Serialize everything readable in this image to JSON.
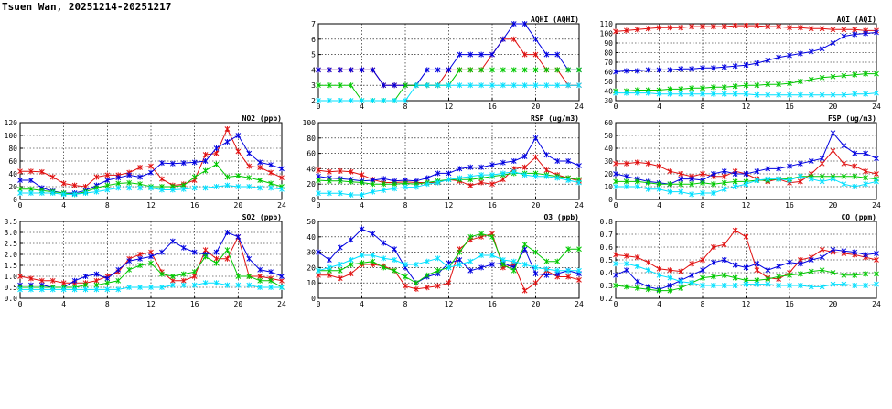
{
  "page": {
    "title": "Tsuen Wan, 20251214-20251217"
  },
  "colors": {
    "red": "#e01010",
    "blue": "#0000e0",
    "green": "#00c800",
    "cyan": "#00e0ff"
  },
  "chart_data": [
    {
      "title": "AQHI (AQHI)",
      "type": "line",
      "xlim": [
        0,
        24
      ],
      "xticks": [
        0,
        4,
        8,
        12,
        16,
        20,
        24
      ],
      "ylim": [
        2,
        7
      ],
      "yticks": [
        2,
        3,
        4,
        5,
        6,
        7
      ],
      "grid": true,
      "series": [
        {
          "color": "red",
          "values": [
            4,
            4,
            4,
            4,
            4,
            4,
            3,
            3,
            3,
            3,
            3,
            3,
            4,
            4,
            4,
            4,
            5,
            6,
            6,
            5,
            5,
            4,
            4,
            3,
            3
          ]
        },
        {
          "color": "blue",
          "values": [
            4,
            4,
            4,
            4,
            4,
            4,
            3,
            3,
            3,
            3,
            4,
            4,
            4,
            5,
            5,
            5,
            5,
            6,
            7,
            7,
            6,
            5,
            5,
            4,
            4
          ]
        },
        {
          "color": "green",
          "values": [
            3,
            3,
            3,
            3,
            2,
            2,
            2,
            2,
            3,
            3,
            3,
            3,
            3,
            4,
            4,
            4,
            4,
            4,
            4,
            4,
            4,
            4,
            4,
            4,
            4
          ]
        },
        {
          "color": "cyan",
          "values": [
            2,
            2,
            2,
            2,
            2,
            2,
            2,
            2,
            2,
            3,
            3,
            3,
            3,
            3,
            3,
            3,
            3,
            3,
            3,
            3,
            3,
            3,
            3,
            3,
            3
          ]
        }
      ]
    },
    {
      "title": "AQI (AQI)",
      "type": "line",
      "xlim": [
        0,
        24
      ],
      "xticks": [
        0,
        4,
        8,
        12,
        16,
        20,
        24
      ],
      "ylim": [
        30,
        110
      ],
      "yticks": [
        30,
        40,
        50,
        60,
        70,
        80,
        90,
        100,
        110
      ],
      "grid": true,
      "series": [
        {
          "color": "red",
          "values": [
            102,
            103,
            104,
            105,
            106,
            106,
            106,
            107,
            107,
            107,
            107,
            108,
            108,
            108,
            107,
            107,
            106,
            106,
            105,
            105,
            104,
            104,
            104,
            103,
            103
          ]
        },
        {
          "color": "blue",
          "values": [
            60,
            61,
            61,
            62,
            62,
            62,
            63,
            63,
            64,
            64,
            65,
            66,
            67,
            69,
            72,
            75,
            77,
            79,
            81,
            84,
            90,
            97,
            99,
            100,
            101
          ]
        },
        {
          "color": "green",
          "values": [
            40,
            40,
            41,
            41,
            41,
            42,
            42,
            43,
            43,
            44,
            44,
            45,
            46,
            46,
            47,
            47,
            48,
            50,
            52,
            54,
            55,
            56,
            57,
            58,
            58
          ]
        },
        {
          "color": "cyan",
          "values": [
            38,
            38,
            38,
            38,
            37,
            37,
            37,
            37,
            37,
            37,
            37,
            37,
            37,
            36,
            36,
            36,
            36,
            36,
            36,
            36,
            36,
            36,
            37,
            37,
            38
          ]
        }
      ]
    },
    {
      "title": "NO2 (ppb)",
      "type": "line",
      "xlim": [
        0,
        24
      ],
      "xticks": [
        0,
        4,
        8,
        12,
        16,
        20,
        24
      ],
      "ylim": [
        0,
        120
      ],
      "yticks": [
        0,
        20,
        40,
        60,
        80,
        100,
        120
      ],
      "grid": true,
      "series": [
        {
          "color": "red",
          "values": [
            44,
            44,
            43,
            35,
            25,
            22,
            20,
            35,
            38,
            38,
            42,
            50,
            52,
            32,
            22,
            24,
            30,
            70,
            72,
            110,
            75,
            52,
            50,
            42,
            34
          ]
        },
        {
          "color": "blue",
          "values": [
            30,
            30,
            18,
            13,
            10,
            10,
            14,
            22,
            30,
            34,
            38,
            35,
            42,
            57,
            56,
            57,
            58,
            60,
            80,
            90,
            100,
            72,
            58,
            54,
            48
          ]
        },
        {
          "color": "green",
          "values": [
            16,
            16,
            14,
            12,
            10,
            8,
            12,
            18,
            22,
            25,
            26,
            24,
            20,
            20,
            20,
            22,
            35,
            45,
            55,
            35,
            37,
            34,
            30,
            25,
            20
          ]
        },
        {
          "color": "cyan",
          "values": [
            10,
            10,
            10,
            10,
            8,
            8,
            10,
            12,
            15,
            18,
            18,
            18,
            18,
            15,
            15,
            16,
            18,
            18,
            20,
            22,
            20,
            20,
            18,
            18,
            16
          ]
        }
      ]
    },
    {
      "title": "RSP (ug/m3)",
      "type": "line",
      "xlim": [
        0,
        24
      ],
      "xticks": [
        0,
        4,
        8,
        12,
        16,
        20,
        24
      ],
      "ylim": [
        0,
        100
      ],
      "yticks": [
        0,
        20,
        40,
        60,
        80,
        100
      ],
      "grid": true,
      "series": [
        {
          "color": "red",
          "values": [
            38,
            36,
            37,
            36,
            32,
            26,
            22,
            22,
            23,
            22,
            22,
            22,
            26,
            24,
            18,
            22,
            20,
            26,
            40,
            42,
            55,
            38,
            32,
            28,
            24
          ]
        },
        {
          "color": "blue",
          "values": [
            30,
            28,
            27,
            26,
            24,
            25,
            27,
            24,
            25,
            24,
            28,
            34,
            34,
            40,
            42,
            42,
            45,
            48,
            50,
            56,
            80,
            58,
            50,
            50,
            44
          ]
        },
        {
          "color": "green",
          "values": [
            25,
            24,
            24,
            23,
            22,
            20,
            20,
            20,
            21,
            20,
            22,
            24,
            26,
            26,
            26,
            28,
            30,
            32,
            34,
            34,
            34,
            32,
            30,
            28,
            26
          ]
        },
        {
          "color": "cyan",
          "values": [
            8,
            8,
            8,
            6,
            6,
            10,
            12,
            14,
            16,
            16,
            20,
            22,
            26,
            28,
            30,
            32,
            32,
            34,
            36,
            32,
            30,
            30,
            28,
            25,
            22
          ]
        }
      ]
    },
    {
      "title": "FSP (ug/m3)",
      "type": "line",
      "xlim": [
        0,
        24
      ],
      "xticks": [
        0,
        4,
        8,
        12,
        16,
        20,
        24
      ],
      "ylim": [
        0,
        60
      ],
      "yticks": [
        0,
        10,
        20,
        30,
        40,
        50,
        60
      ],
      "grid": true,
      "series": [
        {
          "color": "red",
          "values": [
            28,
            28,
            29,
            28,
            26,
            22,
            20,
            18,
            20,
            18,
            18,
            22,
            20,
            16,
            14,
            16,
            13,
            14,
            20,
            28,
            38,
            28,
            26,
            22,
            20
          ]
        },
        {
          "color": "blue",
          "values": [
            20,
            18,
            16,
            14,
            13,
            12,
            16,
            16,
            15,
            20,
            22,
            20,
            20,
            22,
            24,
            24,
            26,
            28,
            30,
            32,
            52,
            42,
            36,
            36,
            32
          ]
        },
        {
          "color": "green",
          "values": [
            14,
            14,
            14,
            13,
            12,
            12,
            12,
            12,
            13,
            12,
            13,
            14,
            14,
            15,
            15,
            16,
            16,
            18,
            18,
            18,
            18,
            18,
            18,
            17,
            16
          ]
        },
        {
          "color": "cyan",
          "values": [
            10,
            10,
            10,
            8,
            8,
            6,
            6,
            4,
            5,
            5,
            8,
            10,
            12,
            15,
            16,
            16,
            15,
            18,
            16,
            14,
            16,
            12,
            10,
            12,
            14
          ]
        }
      ]
    },
    {
      "title": "SO2 (ppb)",
      "type": "line",
      "xlim": [
        0,
        24
      ],
      "xticks": [
        0,
        4,
        8,
        12,
        16,
        20,
        24
      ],
      "ylim": [
        0,
        3.5
      ],
      "yticks": [
        0,
        0.5,
        1.0,
        1.5,
        2.0,
        2.5,
        3.0,
        3.5
      ],
      "grid": true,
      "series": [
        {
          "color": "red",
          "values": [
            1.0,
            0.9,
            0.8,
            0.8,
            0.7,
            0.7,
            0.7,
            0.8,
            1.0,
            1.2,
            1.8,
            2.0,
            2.1,
            1.2,
            0.8,
            0.8,
            1.0,
            2.2,
            1.8,
            1.8,
            2.8,
            1.0,
            1.0,
            0.9,
            0.8
          ]
        },
        {
          "color": "blue",
          "values": [
            0.6,
            0.6,
            0.6,
            0.5,
            0.5,
            0.8,
            1.0,
            1.1,
            0.9,
            1.3,
            1.7,
            1.8,
            1.9,
            2.1,
            2.6,
            2.3,
            2.1,
            2.0,
            2.1,
            3.0,
            2.8,
            1.8,
            1.3,
            1.2,
            1.0
          ]
        },
        {
          "color": "green",
          "values": [
            0.5,
            0.5,
            0.5,
            0.5,
            0.5,
            0.5,
            0.6,
            0.6,
            0.7,
            0.8,
            1.3,
            1.5,
            1.6,
            1.1,
            1.0,
            1.1,
            1.2,
            1.9,
            1.6,
            2.2,
            1.0,
            1.0,
            0.8,
            0.8,
            0.5
          ]
        },
        {
          "color": "cyan",
          "values": [
            0.4,
            0.4,
            0.4,
            0.4,
            0.4,
            0.4,
            0.4,
            0.4,
            0.4,
            0.4,
            0.5,
            0.5,
            0.5,
            0.5,
            0.6,
            0.6,
            0.6,
            0.7,
            0.7,
            0.6,
            0.6,
            0.6,
            0.5,
            0.5,
            0.5
          ]
        }
      ]
    },
    {
      "title": "O3 (ppb)",
      "type": "line",
      "xlim": [
        0,
        24
      ],
      "xticks": [
        0,
        4,
        8,
        12,
        16,
        20,
        24
      ],
      "ylim": [
        0,
        50
      ],
      "yticks": [
        0,
        10,
        20,
        30,
        40,
        50
      ],
      "grid": true,
      "series": [
        {
          "color": "red",
          "values": [
            15,
            15,
            13,
            16,
            22,
            22,
            21,
            18,
            8,
            6,
            7,
            8,
            10,
            32,
            38,
            40,
            42,
            20,
            22,
            5,
            10,
            18,
            14,
            14,
            12
          ]
        },
        {
          "color": "blue",
          "values": [
            30,
            25,
            33,
            38,
            45,
            42,
            36,
            32,
            20,
            10,
            14,
            16,
            23,
            25,
            18,
            20,
            22,
            23,
            20,
            32,
            16,
            15,
            16,
            18,
            16
          ]
        },
        {
          "color": "green",
          "values": [
            18,
            18,
            18,
            22,
            23,
            24,
            20,
            18,
            14,
            10,
            15,
            18,
            20,
            30,
            40,
            42,
            40,
            22,
            18,
            35,
            30,
            24,
            24,
            32,
            32
          ]
        },
        {
          "color": "cyan",
          "values": [
            18,
            20,
            22,
            25,
            28,
            28,
            26,
            25,
            22,
            22,
            24,
            26,
            20,
            22,
            24,
            28,
            28,
            25,
            24,
            22,
            20,
            19,
            18,
            18,
            18
          ]
        }
      ]
    },
    {
      "title": "CO (ppm)",
      "type": "line",
      "xlim": [
        0,
        24
      ],
      "xticks": [
        0,
        4,
        8,
        12,
        16,
        20,
        24
      ],
      "ylim": [
        0.2,
        0.8
      ],
      "yticks": [
        0.2,
        0.3,
        0.4,
        0.5,
        0.6,
        0.7,
        0.8
      ],
      "grid": true,
      "series": [
        {
          "color": "red",
          "values": [
            0.54,
            0.53,
            0.52,
            0.48,
            0.43,
            0.42,
            0.41,
            0.47,
            0.5,
            0.6,
            0.62,
            0.73,
            0.68,
            0.42,
            0.36,
            0.35,
            0.4,
            0.5,
            0.52,
            0.58,
            0.56,
            0.55,
            0.54,
            0.52,
            0.5
          ]
        },
        {
          "color": "blue",
          "values": [
            0.38,
            0.42,
            0.33,
            0.29,
            0.27,
            0.3,
            0.34,
            0.38,
            0.42,
            0.48,
            0.5,
            0.46,
            0.44,
            0.47,
            0.42,
            0.45,
            0.48,
            0.47,
            0.5,
            0.52,
            0.58,
            0.57,
            0.56,
            0.54,
            0.55
          ]
        },
        {
          "color": "green",
          "values": [
            0.3,
            0.29,
            0.28,
            0.27,
            0.26,
            0.26,
            0.28,
            0.32,
            0.36,
            0.37,
            0.38,
            0.36,
            0.34,
            0.34,
            0.35,
            0.37,
            0.38,
            0.39,
            0.41,
            0.42,
            0.4,
            0.38,
            0.38,
            0.39,
            0.39
          ]
        },
        {
          "color": "cyan",
          "values": [
            0.47,
            0.47,
            0.45,
            0.42,
            0.38,
            0.36,
            0.33,
            0.32,
            0.3,
            0.3,
            0.3,
            0.3,
            0.31,
            0.31,
            0.31,
            0.3,
            0.3,
            0.3,
            0.29,
            0.29,
            0.31,
            0.31,
            0.3,
            0.3,
            0.31
          ]
        }
      ]
    }
  ]
}
